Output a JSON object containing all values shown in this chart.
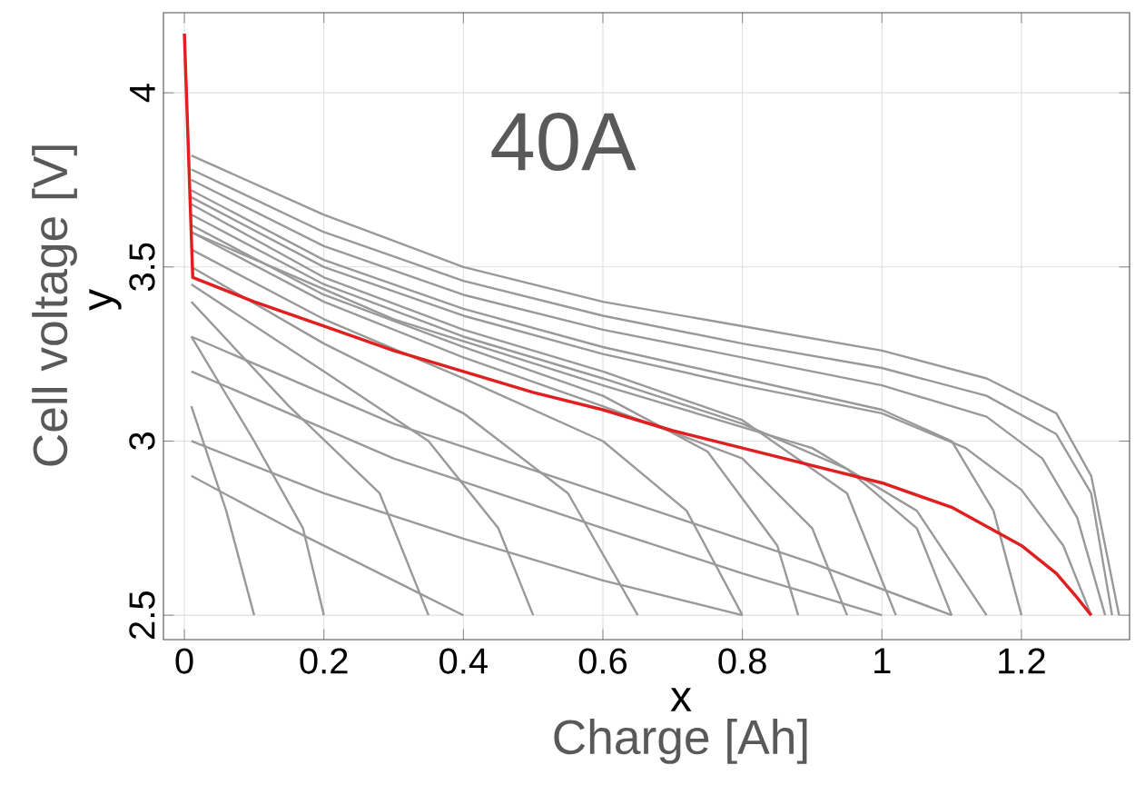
{
  "chart_data": {
    "type": "line",
    "xlabel": "Charge [Ah]",
    "ylabel": "Cell voltage [V]",
    "annotations": [
      "40A",
      "x",
      "y"
    ],
    "xlim": [
      -0.03,
      1.355
    ],
    "ylim": [
      2.43,
      4.23
    ],
    "xticks": [
      0,
      0.2,
      0.4,
      0.6,
      0.8,
      1,
      1.2
    ],
    "yticks": [
      2.5,
      3,
      3.5,
      4
    ],
    "grid": true,
    "marker": "none",
    "line_style": "solid",
    "series": [
      {
        "color": "#999999",
        "x": [
          0.01,
          0.2,
          0.4,
          0.6,
          0.8,
          1.0,
          1.15,
          1.25,
          1.3,
          1.34
        ],
        "values": [
          3.82,
          3.65,
          3.5,
          3.4,
          3.33,
          3.26,
          3.18,
          3.08,
          2.9,
          2.5
        ]
      },
      {
        "color": "#999999",
        "x": [
          0.01,
          0.2,
          0.4,
          0.6,
          0.8,
          1.0,
          1.15,
          1.25,
          1.3,
          1.33
        ],
        "values": [
          3.78,
          3.6,
          3.46,
          3.36,
          3.28,
          3.21,
          3.13,
          3.02,
          2.85,
          2.5
        ]
      },
      {
        "color": "#999999",
        "x": [
          0.01,
          0.2,
          0.4,
          0.6,
          0.8,
          1.0,
          1.15,
          1.23,
          1.28,
          1.32
        ],
        "values": [
          3.75,
          3.56,
          3.42,
          3.32,
          3.24,
          3.16,
          3.07,
          2.95,
          2.78,
          2.5
        ]
      },
      {
        "color": "#999999",
        "x": [
          0.01,
          0.2,
          0.4,
          0.6,
          0.8,
          1.0,
          1.12,
          1.2,
          1.26,
          1.3
        ],
        "values": [
          3.7,
          3.5,
          3.36,
          3.25,
          3.16,
          3.08,
          2.98,
          2.86,
          2.7,
          2.5
        ]
      },
      {
        "color": "#999999",
        "x": [
          0.01,
          0.2,
          0.4,
          0.6,
          0.8,
          1.0,
          1.1,
          1.16,
          1.2
        ],
        "values": [
          3.72,
          3.52,
          3.38,
          3.27,
          3.18,
          3.09,
          3.0,
          2.8,
          2.5
        ]
      },
      {
        "color": "#999999",
        "x": [
          0.01,
          0.2,
          0.4,
          0.6,
          0.8,
          0.95,
          1.05,
          1.1
        ],
        "values": [
          3.65,
          3.45,
          3.3,
          3.18,
          3.05,
          2.92,
          2.75,
          2.5
        ]
      },
      {
        "color": "#999999",
        "x": [
          0.01,
          0.2,
          0.4,
          0.6,
          0.8,
          0.9,
          0.95
        ],
        "values": [
          3.6,
          3.4,
          3.24,
          3.1,
          2.95,
          2.75,
          2.5
        ]
      },
      {
        "color": "#999999",
        "x": [
          0.01,
          0.2,
          0.4,
          0.6,
          0.72,
          0.8
        ],
        "values": [
          3.55,
          3.35,
          3.18,
          3.0,
          2.8,
          2.5
        ]
      },
      {
        "color": "#999999",
        "x": [
          0.01,
          0.2,
          0.4,
          0.55,
          0.65
        ],
        "values": [
          3.5,
          3.28,
          3.08,
          2.85,
          2.5
        ]
      },
      {
        "color": "#999999",
        "x": [
          0.01,
          0.2,
          0.35,
          0.45,
          0.5
        ],
        "values": [
          3.45,
          3.2,
          3.0,
          2.75,
          2.5
        ]
      },
      {
        "color": "#999999",
        "x": [
          0.01,
          0.15,
          0.28,
          0.35
        ],
        "values": [
          3.4,
          3.1,
          2.85,
          2.5
        ]
      },
      {
        "color": "#999999",
        "x": [
          0.01,
          0.1,
          0.17,
          0.2
        ],
        "values": [
          3.3,
          3.0,
          2.75,
          2.5
        ]
      },
      {
        "color": "#999999",
        "x": [
          0.01,
          0.06,
          0.1
        ],
        "values": [
          3.1,
          2.8,
          2.5
        ]
      },
      {
        "color": "#999999",
        "x": [
          0.01,
          0.3,
          0.6,
          0.9,
          1.1
        ],
        "values": [
          3.3,
          3.05,
          2.85,
          2.65,
          2.5
        ]
      },
      {
        "color": "#999999",
        "x": [
          0.01,
          0.3,
          0.6,
          0.8,
          1.0
        ],
        "values": [
          3.2,
          2.95,
          2.75,
          2.62,
          2.5
        ]
      },
      {
        "color": "#999999",
        "x": [
          0.01,
          0.2,
          0.4,
          0.6,
          0.8
        ],
        "values": [
          3.0,
          2.85,
          2.72,
          2.6,
          2.5
        ]
      },
      {
        "color": "#999999",
        "x": [
          0.01,
          0.3,
          0.6,
          0.9,
          1.05,
          1.15
        ],
        "values": [
          3.6,
          3.35,
          3.16,
          2.98,
          2.8,
          2.5
        ]
      },
      {
        "color": "#999999",
        "x": [
          0.01,
          0.2,
          0.4,
          0.6,
          0.8,
          0.95,
          1.02
        ],
        "values": [
          3.68,
          3.47,
          3.32,
          3.2,
          3.06,
          2.85,
          2.5
        ]
      },
      {
        "color": "#999999",
        "x": [
          0.01,
          0.15,
          0.3,
          0.4
        ],
        "values": [
          2.9,
          2.75,
          2.6,
          2.5
        ]
      },
      {
        "color": "#999999",
        "x": [
          0.01,
          0.2,
          0.4,
          0.6,
          0.75,
          0.85,
          0.88
        ],
        "values": [
          3.62,
          3.42,
          3.27,
          3.13,
          2.97,
          2.7,
          2.5
        ]
      },
      {
        "color": "#e02020",
        "x": [
          0,
          0.012,
          0.1,
          0.2,
          0.3,
          0.4,
          0.5,
          0.6,
          0.7,
          0.8,
          0.9,
          1.0,
          1.1,
          1.2,
          1.25,
          1.28,
          1.3
        ],
        "values": [
          4.17,
          3.47,
          3.4,
          3.33,
          3.26,
          3.2,
          3.14,
          3.09,
          3.03,
          2.98,
          2.93,
          2.88,
          2.81,
          2.7,
          2.62,
          2.55,
          2.5
        ]
      }
    ]
  }
}
